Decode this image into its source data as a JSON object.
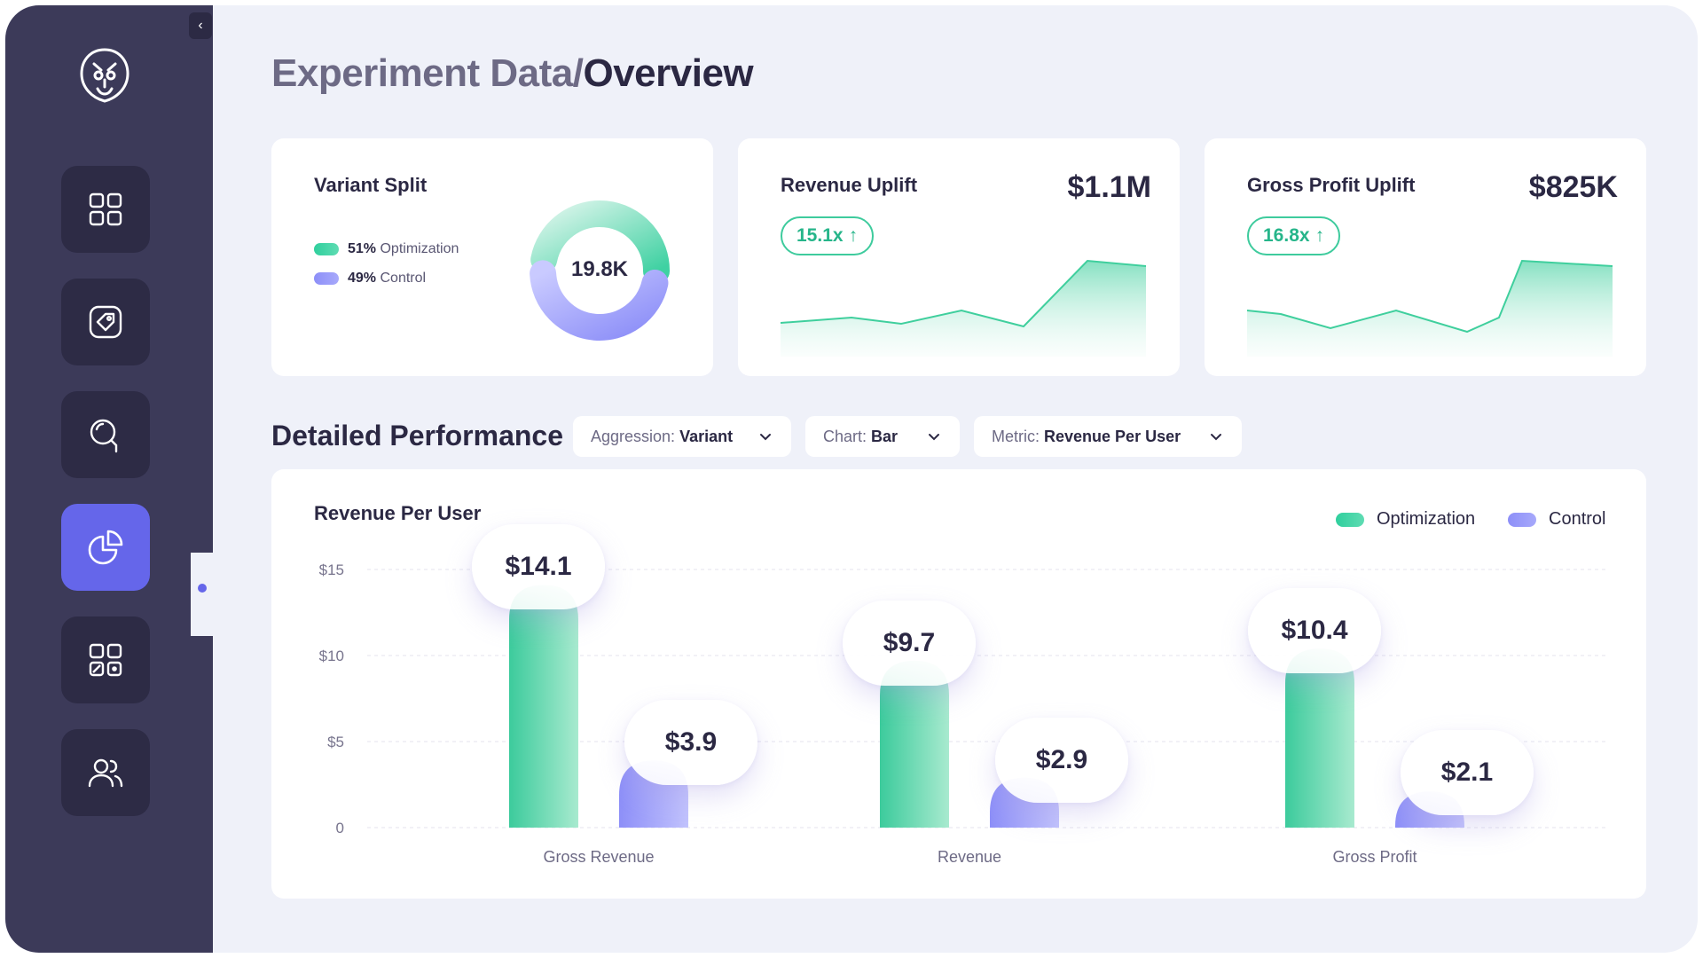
{
  "breadcrumb": {
    "parent": "Experiment Data/",
    "current": "Overview"
  },
  "sidebar": {
    "collapse_glyph": "‹",
    "active_index": 3,
    "items": [
      {
        "icon": "dashboard-grid-icon"
      },
      {
        "icon": "tag-icon"
      },
      {
        "icon": "search-icon"
      },
      {
        "icon": "pie-chart-icon"
      },
      {
        "icon": "apps-icon"
      },
      {
        "icon": "users-icon"
      }
    ]
  },
  "variant_split": {
    "title": "Variant Split",
    "total": "19.8K",
    "legend": [
      {
        "percent": "51%",
        "label": "Optimization",
        "color": "#2fcf9d"
      },
      {
        "percent": "49%",
        "label": "Control",
        "color": "#8d8ff8"
      }
    ]
  },
  "revenue_uplift": {
    "title": "Revenue Uplift",
    "value": "$1.1M",
    "multiplier": "15.1x",
    "arrow": "↑"
  },
  "gross_profit_uplift": {
    "title": "Gross Profit Uplift",
    "value": "$825K",
    "multiplier": "16.8x",
    "arrow": "↑"
  },
  "detailed": {
    "title": "Detailed Performance",
    "filters": [
      {
        "label": "Aggression: ",
        "value": "Variant"
      },
      {
        "label": "Chart: ",
        "value": "Bar"
      },
      {
        "label": "Metric: ",
        "value": "Revenue Per User"
      }
    ]
  },
  "chart_data": {
    "type": "bar",
    "title": "Revenue Per User",
    "categories": [
      "Gross Revenue",
      "Revenue",
      "Gross Profit"
    ],
    "series": [
      {
        "name": "Optimization",
        "values": [
          14.1,
          9.7,
          10.4
        ],
        "labels": [
          "$14.1",
          "$9.7",
          "$10.4"
        ],
        "color": "#2fcf9d"
      },
      {
        "name": "Control",
        "values": [
          3.9,
          2.9,
          2.1
        ],
        "labels": [
          "$3.9",
          "$2.9",
          "$2.1"
        ],
        "color": "#8d8ff8"
      }
    ],
    "yticks": [
      0,
      5,
      10,
      15
    ],
    "ytick_labels": [
      "0",
      "$5",
      "$10",
      "$15"
    ],
    "ylim": [
      0,
      15
    ],
    "grid": true,
    "legend": "top-right"
  },
  "colors": {
    "accent": "#6566ea",
    "green": "#2fcf9d",
    "purple": "#8d8ff8",
    "sidebar": "#3c3a59"
  }
}
